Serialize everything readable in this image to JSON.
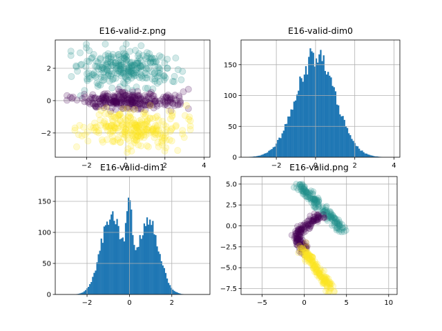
{
  "colors": {
    "bar": "#1f77b4",
    "grid": "#b0b0b0",
    "viridis_purple": "#440154",
    "viridis_teal": "#21918c",
    "viridis_yellow": "#fde725"
  },
  "chart_data": [
    {
      "type": "scatter",
      "title": "E16-valid-z.png",
      "xlim": [
        -3.6,
        4.3
      ],
      "ylim": [
        -3.5,
        3.75
      ],
      "xticks": [
        -2,
        0,
        2,
        4
      ],
      "yticks": [
        -2,
        0,
        2
      ],
      "grid": true,
      "marker_alpha": 0.2,
      "series": [
        {
          "color": "#21918c",
          "x_range": [
            -2.8,
            2.9
          ],
          "y_range": [
            0.3,
            3.5
          ]
        },
        {
          "color": "#440154",
          "x_range": [
            -3.0,
            3.2
          ],
          "y_range": [
            -0.7,
            0.7
          ]
        },
        {
          "color": "#fde725",
          "x_range": [
            -2.6,
            3.3
          ],
          "y_range": [
            -3.2,
            -0.3
          ]
        }
      ]
    },
    {
      "type": "bar",
      "title": "E16-valid-dim0",
      "xlim": [
        -3.8,
        4.3
      ],
      "ylim": [
        0,
        190
      ],
      "xticks": [
        -2,
        0,
        2,
        4
      ],
      "yticks": [
        0,
        50,
        100,
        150
      ],
      "grid": true,
      "distribution": "unimodal",
      "peak_count": 182,
      "peak_at": 0.0
    },
    {
      "type": "bar",
      "title": "E16-valid-dim1",
      "xlim": [
        -3.5,
        3.8
      ],
      "ylim": [
        0,
        190
      ],
      "xticks": [
        -2,
        0,
        2
      ],
      "yticks": [
        0,
        50,
        100,
        150
      ],
      "grid": true,
      "distribution": "bimodal",
      "peak_count": 182,
      "peak_at": 0.0
    },
    {
      "type": "scatter",
      "title": "E16-valid.png",
      "xlim": [
        -7.5,
        11
      ],
      "ylim": [
        -8.2,
        5.9
      ],
      "xticks": [
        -5,
        0,
        5,
        10
      ],
      "yticks": [
        -7.5,
        -5.0,
        -2.5,
        0.0,
        2.5,
        5.0
      ],
      "ytick_labels": [
        "−7.5",
        "−5.0",
        "−2.5",
        "0.0",
        "2.5",
        "5.0"
      ],
      "grid": true,
      "marker_alpha": 0.2,
      "series": [
        {
          "color": "#21918c",
          "path": [
            [
              -0.8,
              5.1
            ],
            [
              4.6,
              -0.3
            ]
          ]
        },
        {
          "color": "#440154",
          "path": [
            [
              2.0,
              1.2
            ],
            [
              0.5,
              0.3
            ],
            [
              -1.0,
              -0.8
            ],
            [
              -0.6,
              -2.0
            ],
            [
              0.0,
              -3.0
            ]
          ]
        },
        {
          "color": "#fde725",
          "path": [
            [
              -0.3,
              -2.7
            ],
            [
              1.2,
              -4.8
            ],
            [
              3.3,
              -7.8
            ]
          ]
        }
      ]
    }
  ]
}
